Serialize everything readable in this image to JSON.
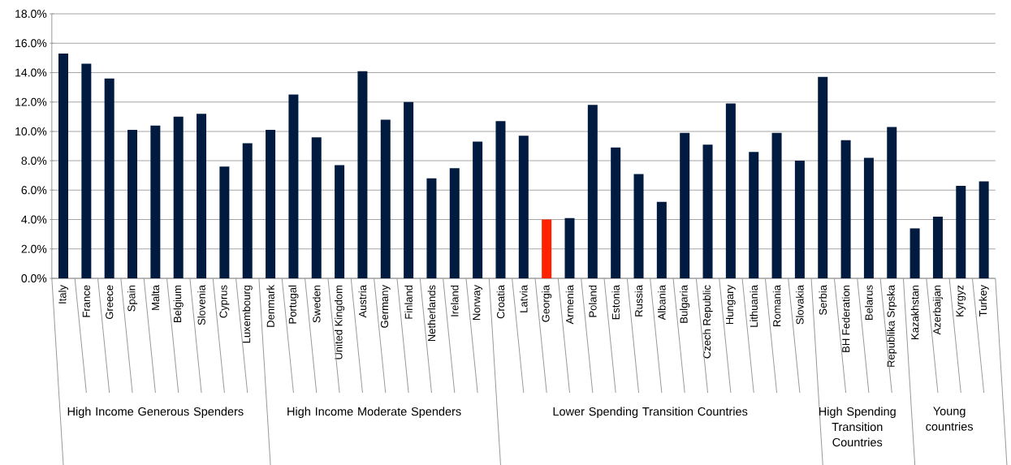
{
  "chart_data": {
    "type": "bar",
    "categories": [
      "Italy",
      "France",
      "Greece",
      "Spain",
      "Malta",
      "Belgium",
      "Slovenia",
      "Cyprus",
      "Luxembourg",
      "Denmark",
      "Portugal",
      "Sweden",
      "United Kingdom",
      "Austria",
      "Germany",
      "Finland",
      "Netherlands",
      "Ireland",
      "Norway",
      "Croatia",
      "Latvia",
      "Georgia",
      "Armenia",
      "Poland",
      "Estonia",
      "Russia",
      "Albania",
      "Bulgaria",
      "Czech Republic",
      "Hungary",
      "Lithuania",
      "Romania",
      "Slovakia",
      "Serbia",
      "BH Federation",
      "Belarus",
      "Republika Srpska",
      "Kazakhstan",
      "Azerbaijan",
      "Kyrgyz",
      "Turkey"
    ],
    "values": [
      15.3,
      14.6,
      13.6,
      10.1,
      10.4,
      11.0,
      11.2,
      7.6,
      9.2,
      10.1,
      12.5,
      9.6,
      7.7,
      14.1,
      10.8,
      12.0,
      6.8,
      7.5,
      9.3,
      10.7,
      9.7,
      4.0,
      4.1,
      11.8,
      8.9,
      7.1,
      5.2,
      9.9,
      9.1,
      11.9,
      8.6,
      9.9,
      8.0,
      13.7,
      9.4,
      8.2,
      10.3,
      3.4,
      4.2,
      6.3,
      6.6
    ],
    "colors": [
      "#001b3f",
      "#001b3f",
      "#001b3f",
      "#001b3f",
      "#001b3f",
      "#001b3f",
      "#001b3f",
      "#001b3f",
      "#001b3f",
      "#001b3f",
      "#001b3f",
      "#001b3f",
      "#001b3f",
      "#001b3f",
      "#001b3f",
      "#001b3f",
      "#001b3f",
      "#001b3f",
      "#001b3f",
      "#001b3f",
      "#001b3f",
      "#ff2200",
      "#001b3f",
      "#001b3f",
      "#001b3f",
      "#001b3f",
      "#001b3f",
      "#001b3f",
      "#001b3f",
      "#001b3f",
      "#001b3f",
      "#001b3f",
      "#001b3f",
      "#001b3f",
      "#001b3f",
      "#001b3f",
      "#001b3f",
      "#001b3f",
      "#001b3f",
      "#001b3f",
      "#001b3f"
    ],
    "ylim": [
      0,
      18
    ],
    "yticks": [
      {
        "value": 0,
        "label": "0.0%"
      },
      {
        "value": 2,
        "label": "2.0%"
      },
      {
        "value": 4,
        "label": "4.0%"
      },
      {
        "value": 6,
        "label": "6.0%"
      },
      {
        "value": 8,
        "label": "8.0%"
      },
      {
        "value": 10,
        "label": "10.0%"
      },
      {
        "value": 12,
        "label": "12.0%"
      },
      {
        "value": 14,
        "label": "14.0%"
      },
      {
        "value": 16,
        "label": "16.0%"
      },
      {
        "value": 18,
        "label": "18.0%"
      }
    ],
    "grid": "y",
    "annotations": [
      "High Income Generous Spenders",
      "High Income Moderate Spenders",
      "Lower Spending Transition Countries",
      "High Spending Transition Countries",
      "Young countries"
    ]
  }
}
